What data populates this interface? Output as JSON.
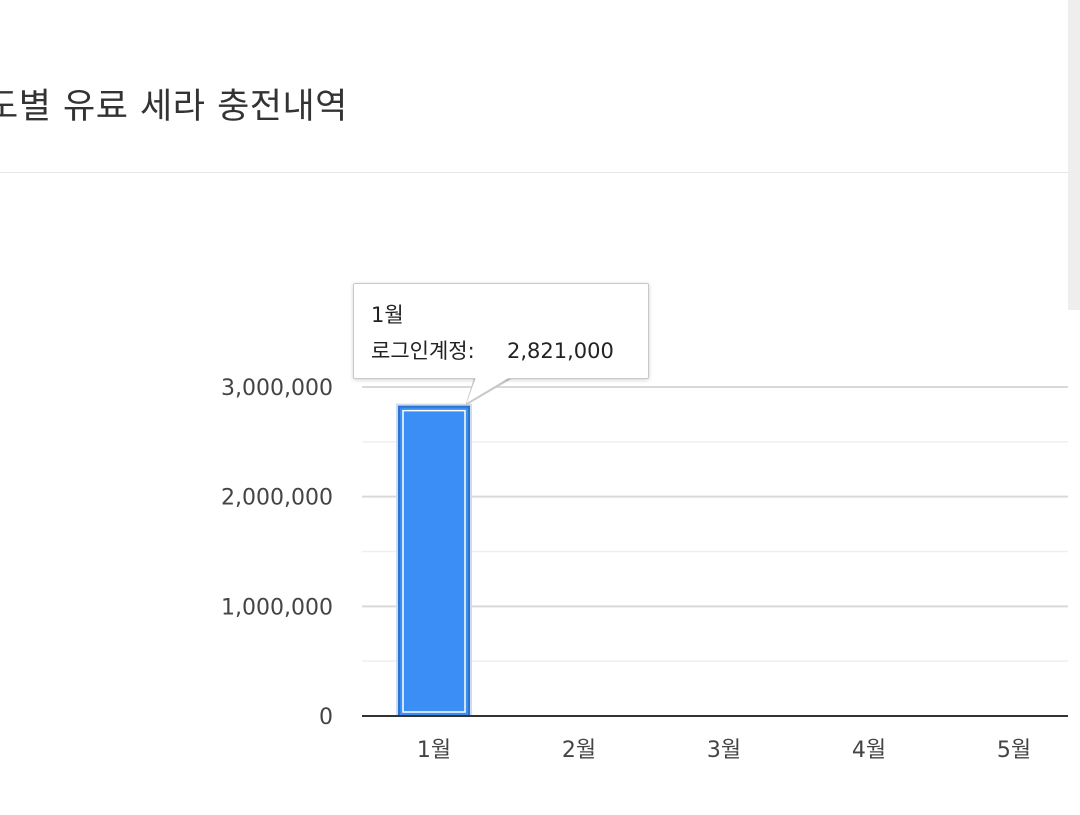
{
  "header": {
    "title": "도별 유료 세라 충전내역"
  },
  "chart_data": {
    "type": "bar",
    "categories": [
      "1월",
      "2월",
      "3월",
      "4월",
      "5월"
    ],
    "series": [
      {
        "name": "로그인계정",
        "values": [
          2821000,
          0,
          0,
          0,
          0
        ],
        "color": "#3a8ef5"
      }
    ],
    "ylim": [
      0,
      3000000
    ],
    "yticks": [
      "0",
      "1,000,000",
      "2,000,000",
      "3,000,000"
    ],
    "grid": true,
    "legend": "none"
  },
  "tooltip": {
    "category": "1월",
    "series_label": "로그인계정:",
    "value": "2,821,000"
  }
}
